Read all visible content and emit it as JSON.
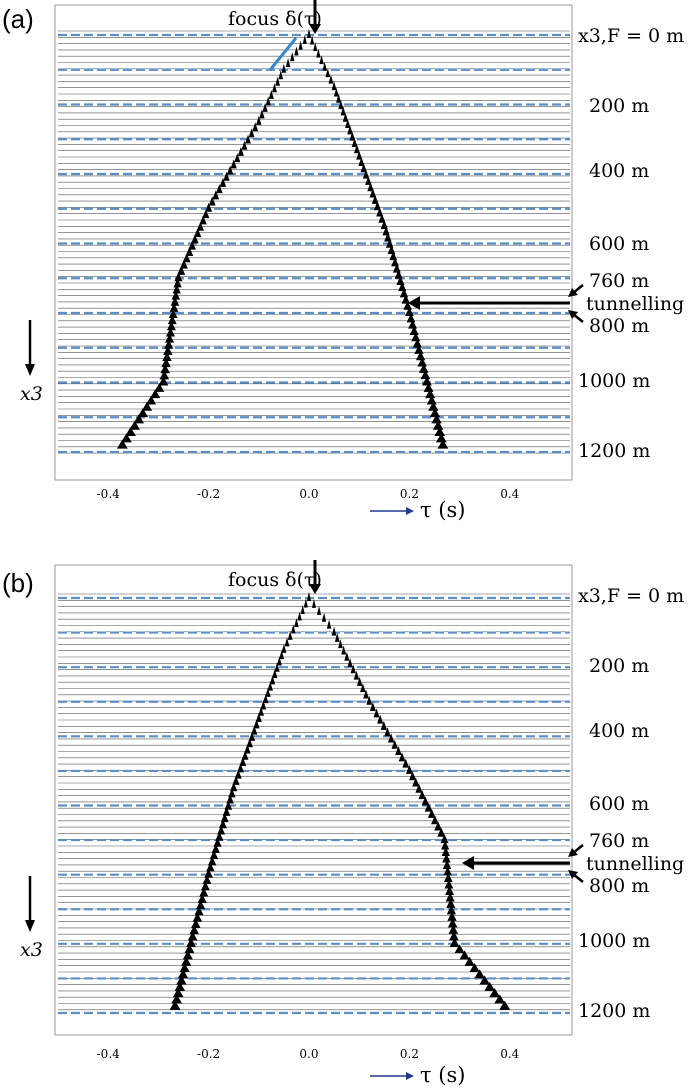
{
  "panels": [
    {
      "label": "(a)",
      "focus_label": "focus δ(τ)",
      "depth_labels": [
        "x3,F = 0 m",
        "200 m",
        "400 m",
        "600 m",
        "760 m",
        "800 m",
        "1000 m",
        "1200 m"
      ],
      "tunnelling_label": "tunnelling",
      "axis_var_label": "x3",
      "tau_label": "τ (s)",
      "x_ticks": [
        "-0.4",
        "-0.2",
        "0.0",
        "0.2",
        "0.4"
      ]
    },
    {
      "label": "(b)",
      "focus_label": "focus δ(τ)",
      "depth_labels": [
        "x3,F = 0 m",
        "200 m",
        "400 m",
        "600 m",
        "760 m",
        "800 m",
        "1000 m",
        "1200 m"
      ],
      "tunnelling_label": "tunnelling",
      "axis_var_label": "x3",
      "tau_label": "τ (s)",
      "x_ticks": [
        "-0.4",
        "-0.2",
        "0.0",
        "0.2",
        "0.4"
      ]
    }
  ],
  "chart_data": [
    {
      "type": "line",
      "xlabel": "τ (s)",
      "ylabel": "x3",
      "xlim": [
        -0.5,
        0.52
      ],
      "ylim": [
        0,
        1200
      ],
      "x_ticks": [
        -0.4,
        -0.2,
        0.0,
        0.2,
        0.4
      ],
      "depth_ticks_m": [
        0,
        200,
        400,
        600,
        760,
        800,
        1000,
        1200
      ],
      "series": [
        {
          "values": [
            [
              0.0,
              0
            ],
            [
              -0.05,
              100
            ],
            [
              -0.1,
              250
            ],
            [
              -0.2,
              500
            ],
            [
              -0.26,
              700
            ],
            [
              -0.29,
              1000
            ],
            [
              -0.38,
              1200
            ]
          ]
        },
        {
          "values": [
            [
              0.0,
              0
            ],
            [
              0.05,
              150
            ],
            [
              0.1,
              350
            ],
            [
              0.15,
              550
            ],
            [
              0.2,
              800
            ],
            [
              0.27,
              1200
            ]
          ]
        }
      ]
    },
    {
      "type": "line",
      "xlabel": "τ (s)",
      "ylabel": "x3",
      "xlim": [
        -0.5,
        0.52
      ],
      "ylim": [
        0,
        1200
      ],
      "x_ticks": [
        -0.4,
        -0.2,
        0.0,
        0.2,
        0.4
      ],
      "depth_ticks_m": [
        0,
        200,
        400,
        600,
        760,
        800,
        1000,
        1200
      ],
      "series": [
        {
          "values": [
            [
              0.0,
              0
            ],
            [
              0.05,
              100
            ],
            [
              0.12,
              300
            ],
            [
              0.2,
              500
            ],
            [
              0.27,
              700
            ],
            [
              0.29,
              1000
            ],
            [
              0.4,
              1200
            ]
          ]
        },
        {
          "values": [
            [
              0.0,
              0
            ],
            [
              -0.05,
              150
            ],
            [
              -0.1,
              350
            ],
            [
              -0.15,
              550
            ],
            [
              -0.2,
              800
            ],
            [
              -0.27,
              1200
            ]
          ]
        }
      ]
    }
  ]
}
